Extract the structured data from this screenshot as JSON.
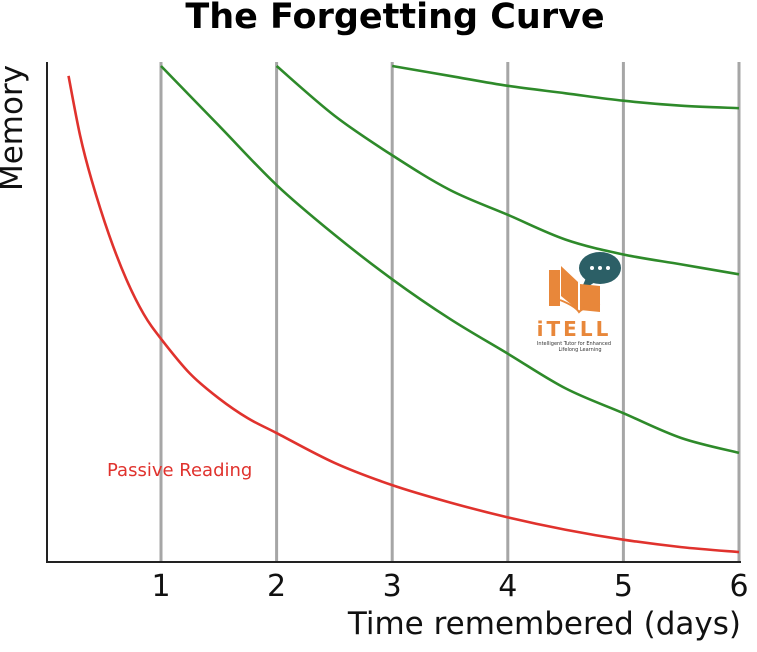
{
  "chart_data": {
    "type": "line",
    "title": "The Forgetting Curve",
    "xlabel": "Time remembered (days)",
    "ylabel": "Memory",
    "xlim": [
      0.12,
      6
    ],
    "ylim": [
      0,
      1.0
    ],
    "x_ticks": [
      1,
      2,
      3,
      4,
      5,
      6
    ],
    "grid": "vertical",
    "series": [
      {
        "name": "Passive Reading",
        "color": "#e0322d",
        "x": [
          0.2,
          0.3,
          0.4,
          0.55,
          0.7,
          0.85,
          1.0,
          1.25,
          1.5,
          1.75,
          2.0,
          2.5,
          3.0,
          3.5,
          4.0,
          4.5,
          5.0,
          5.5,
          6.0
        ],
        "y": [
          0.98,
          0.86,
          0.77,
          0.66,
          0.57,
          0.5,
          0.45,
          0.38,
          0.33,
          0.29,
          0.26,
          0.2,
          0.155,
          0.12,
          0.09,
          0.065,
          0.045,
          0.03,
          0.02
        ]
      },
      {
        "name": "",
        "color": "#2e8a2a",
        "x": [
          1.0,
          1.5,
          2.0,
          2.5,
          3.0,
          3.5,
          4.0,
          4.5,
          5.0,
          5.5,
          6.0
        ],
        "y": [
          1.0,
          0.88,
          0.76,
          0.66,
          0.57,
          0.49,
          0.42,
          0.35,
          0.3,
          0.25,
          0.22
        ]
      },
      {
        "name": "",
        "color": "#2e8a2a",
        "x": [
          2.0,
          2.5,
          3.0,
          3.5,
          4.0,
          4.5,
          5.0,
          5.5,
          6.0
        ],
        "y": [
          1.0,
          0.9,
          0.82,
          0.75,
          0.7,
          0.65,
          0.62,
          0.6,
          0.58
        ]
      },
      {
        "name": "",
        "color": "#2e8a2a",
        "x": [
          3.0,
          3.5,
          4.0,
          4.5,
          5.0,
          5.5,
          6.0
        ],
        "y": [
          1.0,
          0.98,
          0.96,
          0.945,
          0.93,
          0.92,
          0.915
        ]
      }
    ]
  },
  "annotation": {
    "text": "Passive Reading",
    "color": "#e0322d"
  },
  "logo": {
    "word": "iTELL",
    "tagline_line1": "Intelligent Tutor for Enhanced",
    "tagline_line2": "Lifelong Learning",
    "orange": "#e8873a",
    "teal": "#2c5f66"
  },
  "colors": {
    "grid": "#a6a6a6",
    "axis": "#222222"
  }
}
